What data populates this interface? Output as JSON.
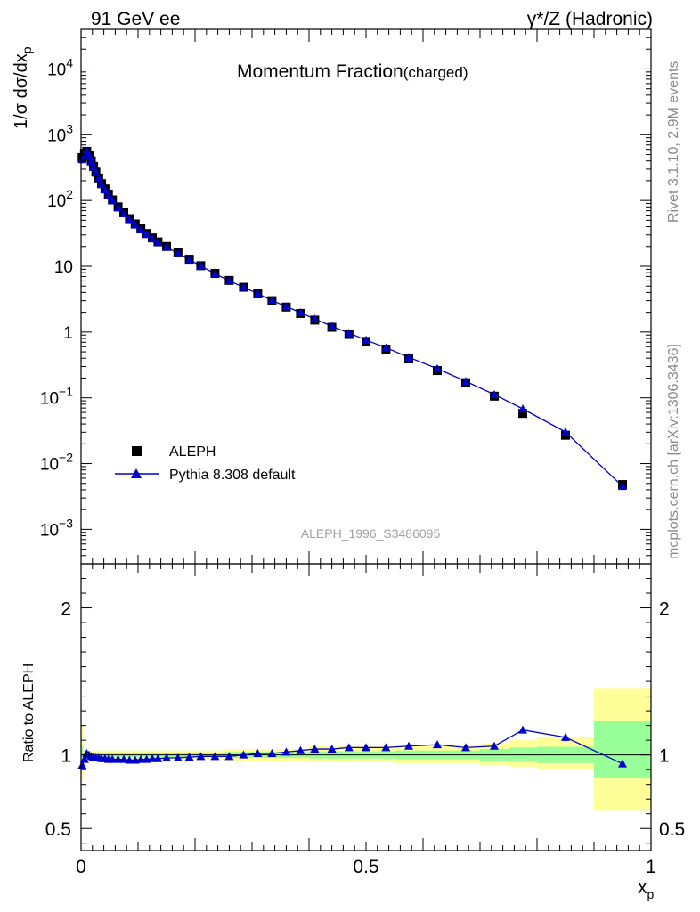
{
  "header": {
    "left_label": "91 GeV ee",
    "right_label": "γ*/Z (Hadronic)"
  },
  "side": {
    "rivet": "Rivet 3.1.10,  2.9M events",
    "mcplots": "mcplots.cern.ch [arXiv:1306.3436]"
  },
  "chart_data": {
    "type": "scatter",
    "title": "Momentum Fraction",
    "title_sub": "(charged)",
    "analysis_label": "ALEPH_1996_S3486095",
    "xlabel": "x",
    "xlabel_sub": "p",
    "ylabel": "1/σ dσ/dx",
    "ylabel_sub": "p",
    "ratio_ylabel": "Ratio to ALEPH",
    "xlim": [
      0,
      1
    ],
    "ylim": [
      0.0003,
      40000
    ],
    "yscale": "log",
    "ratio_ylim": [
      0.35,
      2.3
    ],
    "x_ticks": [
      "0",
      "0.5",
      "1"
    ],
    "y_ticks": [
      {
        "v": 0.001,
        "base": "10",
        "exp": "−3"
      },
      {
        "v": 0.01,
        "base": "10",
        "exp": "−2"
      },
      {
        "v": 0.1,
        "base": "10",
        "exp": "−1"
      },
      {
        "v": 1,
        "base": "1",
        "exp": ""
      },
      {
        "v": 10,
        "base": "10",
        "exp": ""
      },
      {
        "v": 100,
        "base": "10",
        "exp": "2"
      },
      {
        "v": 1000,
        "base": "10",
        "exp": "3"
      },
      {
        "v": 10000,
        "base": "10",
        "exp": "4"
      }
    ],
    "ratio_ticks": [
      "0.5",
      "1",
      "2"
    ],
    "legend_placement": "lower-left",
    "data": {
      "name": "ALEPH",
      "x": [
        0.002,
        0.006,
        0.01,
        0.014,
        0.018,
        0.022,
        0.026,
        0.031,
        0.036,
        0.042,
        0.048,
        0.055,
        0.065,
        0.075,
        0.085,
        0.095,
        0.105,
        0.115,
        0.125,
        0.135,
        0.15,
        0.17,
        0.19,
        0.21,
        0.235,
        0.26,
        0.285,
        0.31,
        0.335,
        0.36,
        0.385,
        0.41,
        0.44,
        0.47,
        0.5,
        0.535,
        0.575,
        0.625,
        0.675,
        0.725,
        0.775,
        0.85,
        0.95
      ],
      "y": [
        450,
        520,
        560,
        480,
        400,
        330,
        270,
        220,
        180,
        150,
        125,
        102,
        80,
        65,
        53,
        44,
        37,
        31.5,
        27,
        23.5,
        20,
        16,
        12.8,
        10.2,
        7.8,
        6.1,
        4.8,
        3.8,
        3.0,
        2.4,
        1.92,
        1.52,
        1.18,
        0.92,
        0.72,
        0.55,
        0.39,
        0.26,
        0.17,
        0.106,
        0.058,
        0.027,
        0.0048
      ]
    },
    "mc": {
      "name": "Pythia 8.308 default",
      "x": [
        0.002,
        0.006,
        0.01,
        0.014,
        0.018,
        0.022,
        0.026,
        0.031,
        0.036,
        0.042,
        0.048,
        0.055,
        0.065,
        0.075,
        0.085,
        0.095,
        0.105,
        0.115,
        0.125,
        0.135,
        0.15,
        0.17,
        0.19,
        0.21,
        0.235,
        0.26,
        0.285,
        0.31,
        0.335,
        0.36,
        0.385,
        0.41,
        0.44,
        0.47,
        0.5,
        0.535,
        0.575,
        0.625,
        0.675,
        0.725,
        0.775,
        0.85,
        0.95
      ],
      "ratio": [
        0.93,
        0.97,
        1.01,
        1.0,
        0.99,
        0.985,
        0.98,
        0.98,
        0.975,
        0.975,
        0.97,
        0.97,
        0.97,
        0.97,
        0.965,
        0.965,
        0.97,
        0.97,
        0.975,
        0.975,
        0.98,
        0.98,
        0.985,
        0.99,
        0.99,
        0.99,
        1.0,
        1.01,
        1.01,
        1.02,
        1.03,
        1.04,
        1.04,
        1.05,
        1.05,
        1.05,
        1.06,
        1.07,
        1.05,
        1.06,
        1.17,
        1.12,
        0.94
      ]
    },
    "bands": [
      {
        "x0": 0.0,
        "x1": 0.004,
        "yellow": [
          0.83,
          1.2
        ],
        "green": [
          0.9,
          1.06
        ]
      },
      {
        "x0": 0.004,
        "x1": 0.25,
        "yellow": [
          0.97,
          1.03
        ],
        "green": [
          0.985,
          1.015
        ]
      },
      {
        "x0": 0.25,
        "x1": 0.4,
        "yellow": [
          0.96,
          1.04
        ],
        "green": [
          0.98,
          1.02
        ]
      },
      {
        "x0": 0.4,
        "x1": 0.55,
        "yellow": [
          0.95,
          1.06
        ],
        "green": [
          0.975,
          1.025
        ]
      },
      {
        "x0": 0.55,
        "x1": 0.7,
        "yellow": [
          0.94,
          1.07
        ],
        "green": [
          0.97,
          1.03
        ]
      },
      {
        "x0": 0.7,
        "x1": 0.75,
        "yellow": [
          0.93,
          1.08
        ],
        "green": [
          0.96,
          1.04
        ]
      },
      {
        "x0": 0.75,
        "x1": 0.8,
        "yellow": [
          0.92,
          1.1
        ],
        "green": [
          0.955,
          1.05
        ]
      },
      {
        "x0": 0.8,
        "x1": 0.9,
        "yellow": [
          0.9,
          1.12
        ],
        "green": [
          0.945,
          1.055
        ]
      },
      {
        "x0": 0.9,
        "x1": 1.0,
        "yellow": [
          0.62,
          1.45
        ],
        "green": [
          0.84,
          1.23
        ]
      }
    ],
    "colors": {
      "data": "#000000",
      "mc": "#0000cc",
      "yellow": "#ffff99",
      "green": "#99ff99"
    }
  }
}
